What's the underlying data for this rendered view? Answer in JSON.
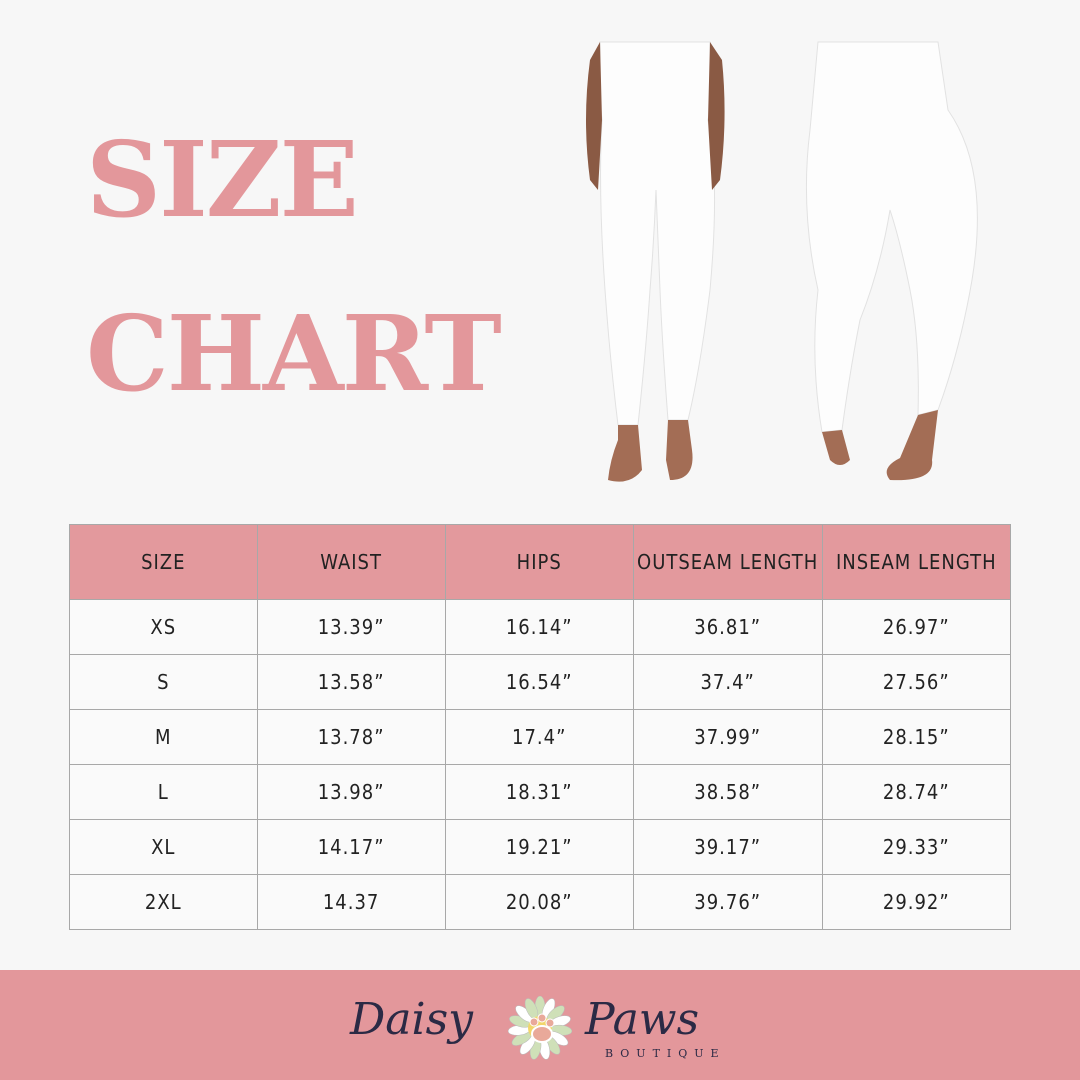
{
  "title": {
    "line1": "SIZE",
    "line2": "CHART"
  },
  "colors": {
    "accent": "#e3979b",
    "background": "#f7f7f7",
    "text": "#222222"
  },
  "table": {
    "headers": [
      "SIZE",
      "WAIST",
      "HIPS",
      "OUTSEAM LENGTH",
      "INSEAM LENGTH"
    ],
    "rows": [
      [
        "XS",
        "13.39”",
        "16.14”",
        "36.81”",
        "26.97”"
      ],
      [
        "S",
        "13.58”",
        "16.54”",
        "37.4”",
        "27.56”"
      ],
      [
        "M",
        "13.78”",
        "17.4”",
        "37.99”",
        "28.15”"
      ],
      [
        "L",
        "13.98”",
        "18.31”",
        "38.58”",
        "28.74”"
      ],
      [
        "XL",
        "14.17”",
        "19.21”",
        "39.17”",
        "29.33”"
      ],
      [
        "2XL",
        "14.37",
        "20.08”",
        "39.76”",
        "29.92”"
      ]
    ]
  },
  "footer": {
    "brand_left": "Daisy",
    "brand_right": "Paws",
    "brand_sub": "BOUTIQUE"
  }
}
